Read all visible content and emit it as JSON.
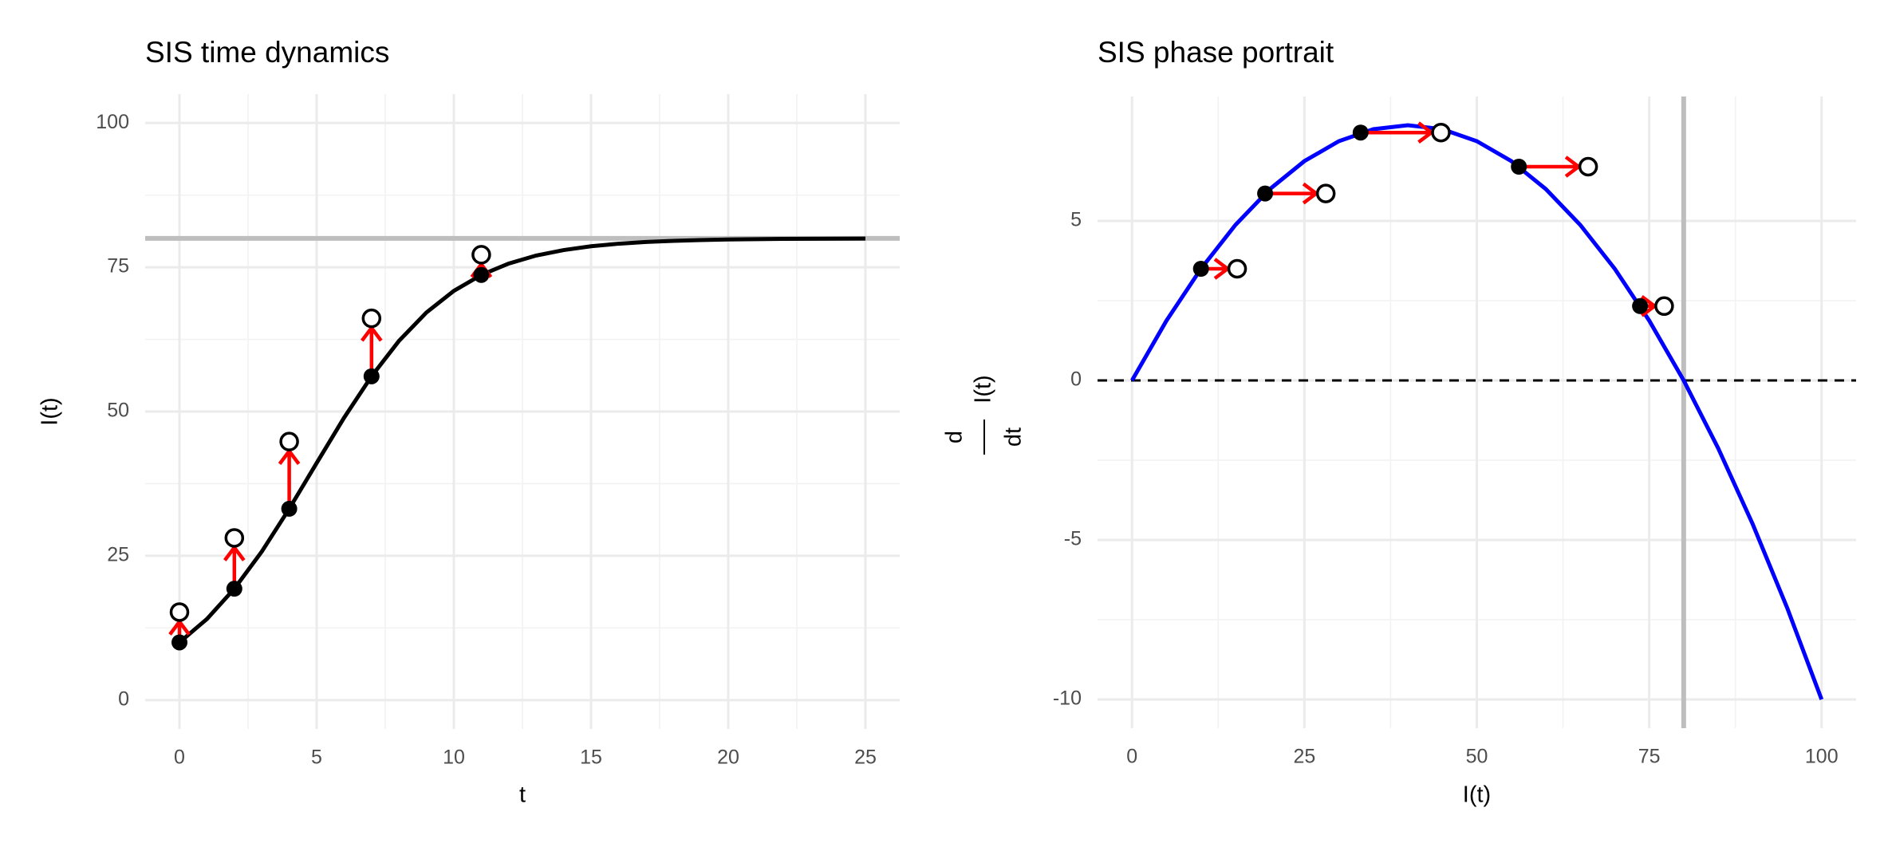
{
  "chart_data": [
    {
      "type": "line",
      "title": "SIS time dynamics",
      "x_label": "t",
      "y_label": "I(t)",
      "xlim": [
        -1.25,
        26.25
      ],
      "ylim": [
        -5,
        105
      ],
      "xticks": [
        0,
        5,
        10,
        15,
        20,
        25
      ],
      "yticks": [
        0,
        25,
        50,
        75,
        100
      ],
      "grid": true,
      "reference_lines": [
        {
          "axis": "y",
          "value": 80,
          "color": "#bebebe"
        }
      ],
      "curve": {
        "color": "#000000",
        "x": [
          0,
          1,
          2,
          3,
          4,
          5,
          6,
          7,
          8,
          9,
          10,
          11,
          12,
          13,
          14,
          15,
          16,
          17,
          18,
          19,
          20,
          21,
          22,
          23,
          24,
          25
        ],
        "values": [
          10,
          14.05,
          19.3,
          25.74,
          33.15,
          41.08,
          48.93,
          56.1,
          62.24,
          67.16,
          70.91,
          73.67,
          75.64,
          77.03,
          77.98,
          78.64,
          79.08,
          79.38,
          79.58,
          79.72,
          79.81,
          79.87,
          79.92,
          79.94,
          79.96,
          79.97
        ]
      },
      "points": {
        "color": "#000000",
        "x": [
          0,
          2,
          4,
          7,
          11
        ],
        "values": [
          10,
          19.3,
          33.15,
          56.1,
          73.67
        ]
      },
      "next_points": {
        "color": "#000000",
        "x": [
          0,
          2,
          4,
          7,
          11
        ],
        "values": [
          15.25,
          28.1,
          44.8,
          66.15,
          77.17
        ]
      },
      "arrow_color": "#ff0000"
    },
    {
      "type": "phase",
      "title": "SIS phase portrait",
      "x_label": "I(t)",
      "y_label": {
        "numerator": "d",
        "denominator": "dt",
        "body": "I(t)"
      },
      "xlim": [
        -5,
        105
      ],
      "ylim": [
        -10.9,
        8.9
      ],
      "xticks": [
        0,
        25,
        50,
        75,
        100
      ],
      "yticks": [
        -10,
        -5,
        0,
        5
      ],
      "grid": true,
      "reference_lines": [
        {
          "axis": "x",
          "value": 80,
          "color": "#bebebe"
        },
        {
          "axis": "y",
          "value": 0,
          "color": "#000000",
          "dash": true
        }
      ],
      "curve": {
        "color": "#0000ff",
        "x": [
          0,
          5,
          10,
          15,
          20,
          25,
          30,
          35,
          40,
          45,
          50,
          55,
          60,
          65,
          70,
          75,
          80,
          85,
          90,
          95,
          100
        ],
        "values": [
          0,
          1.875,
          3.5,
          4.875,
          6,
          6.875,
          7.5,
          7.875,
          8,
          7.875,
          7.5,
          6.875,
          6,
          4.875,
          3.5,
          1.875,
          0,
          -2.125,
          -4.5,
          -7.125,
          -10
        ]
      },
      "points": {
        "color": "#000000",
        "x": [
          10,
          19.3,
          33.15,
          56.1,
          73.67
        ],
        "values": [
          3.5,
          5.86,
          7.77,
          6.7,
          2.33
        ]
      },
      "next_points": {
        "color": "#000000",
        "x": [
          15.25,
          28.1,
          44.8,
          66.15,
          77.17
        ],
        "values": [
          3.5,
          5.86,
          7.77,
          6.7,
          2.33
        ]
      },
      "arrow_color": "#ff0000"
    }
  ]
}
